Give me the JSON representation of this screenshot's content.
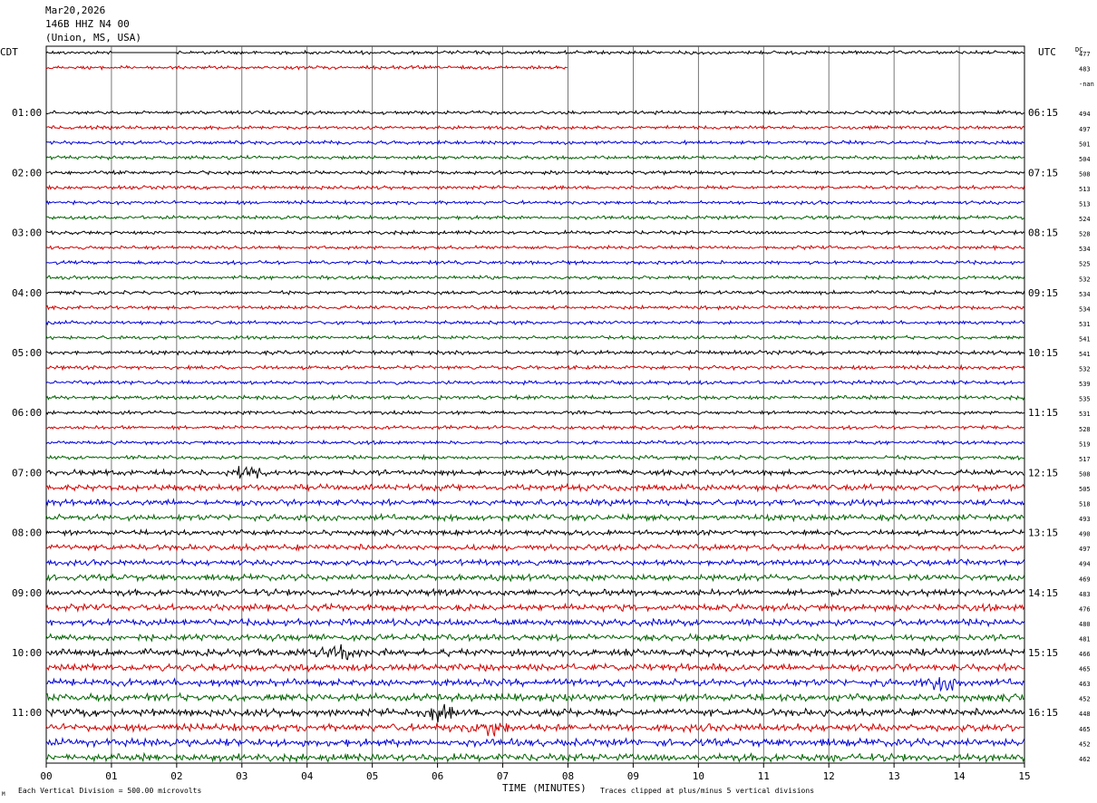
{
  "header": {
    "date": "Mar20,2026",
    "station": "146B HHZ N4 00",
    "location": "(Union, MS, USA)",
    "left_tz": "CDT",
    "right_tz": "UTC",
    "dc_label": "DC"
  },
  "footer": {
    "scale_note": "Each Vertical Division =  500.00 microvolts",
    "xlabel": "TIME (MINUTES)",
    "clip_note": "Traces clipped at plus/minus 5 vertical divisions",
    "corner_mark": "M"
  },
  "colors": {
    "cycle": [
      "#000000",
      "#d40000",
      "#0000d4",
      "#006400"
    ]
  },
  "chart_data": {
    "type": "line",
    "xlabel": "TIME (MINUTES)",
    "xlim": [
      0,
      15
    ],
    "x_ticks": [
      "00",
      "01",
      "02",
      "03",
      "04",
      "05",
      "06",
      "07",
      "08",
      "09",
      "10",
      "11",
      "12",
      "13",
      "14",
      "15"
    ],
    "grid": "vertical lines at each minute",
    "rows_per_hour": 4,
    "minutes_per_row": 15,
    "left_hour_labels": [
      "01:00",
      "02:00",
      "03:00",
      "04:00",
      "05:00",
      "06:00",
      "07:00",
      "08:00",
      "09:00",
      "10:00",
      "11:00"
    ],
    "right_hour_labels": [
      "06:15",
      "07:15",
      "08:15",
      "09:15",
      "10:15",
      "11:15",
      "12:15",
      "13:15",
      "14:15",
      "15:15",
      "16:15"
    ],
    "dc_offsets": [
      "477",
      "483",
      "-nan",
      "",
      "494",
      "497",
      "501",
      "504",
      "508",
      "513",
      "513",
      "524",
      "528",
      "534",
      "525",
      "532",
      "534",
      "534",
      "531",
      "541",
      "541",
      "532",
      "539",
      "535",
      "531",
      "528",
      "519",
      "517",
      "508",
      "505",
      "518",
      "493",
      "490",
      "497",
      "494",
      "469",
      "483",
      "476",
      "480",
      "481",
      "466",
      "465",
      "463",
      "452",
      "448",
      "465",
      "452",
      "462"
    ],
    "row_activity": [
      1,
      1,
      0,
      0,
      1,
      1,
      1,
      1,
      1,
      1,
      1,
      1,
      1,
      1,
      1,
      1,
      1,
      1,
      1,
      1,
      1.1,
      1.1,
      1.1,
      1.1,
      1,
      1,
      1,
      1.1,
      1.5,
      1.7,
      1.7,
      1.7,
      1.5,
      1.7,
      1.6,
      1.7,
      1.8,
      1.9,
      1.9,
      1.8,
      2.0,
      2.0,
      2.0,
      2.1,
      2.1,
      2.1,
      2.1,
      2.1
    ],
    "events": [
      {
        "row": 28,
        "minute": 3.1,
        "label": "burst"
      },
      {
        "row": 40,
        "minute": 4.5,
        "label": "burst"
      },
      {
        "row": 42,
        "minute": 13.8,
        "label": "burst"
      },
      {
        "row": 44,
        "minute": 6.0,
        "label": "burst"
      },
      {
        "row": 45,
        "minute": 6.8,
        "label": "burst"
      }
    ],
    "partial_rows": [
      {
        "row": 0,
        "flat_minutes": [
          1.0,
          2.0
        ]
      },
      {
        "row": 1,
        "end_minute": 8.0
      }
    ]
  }
}
